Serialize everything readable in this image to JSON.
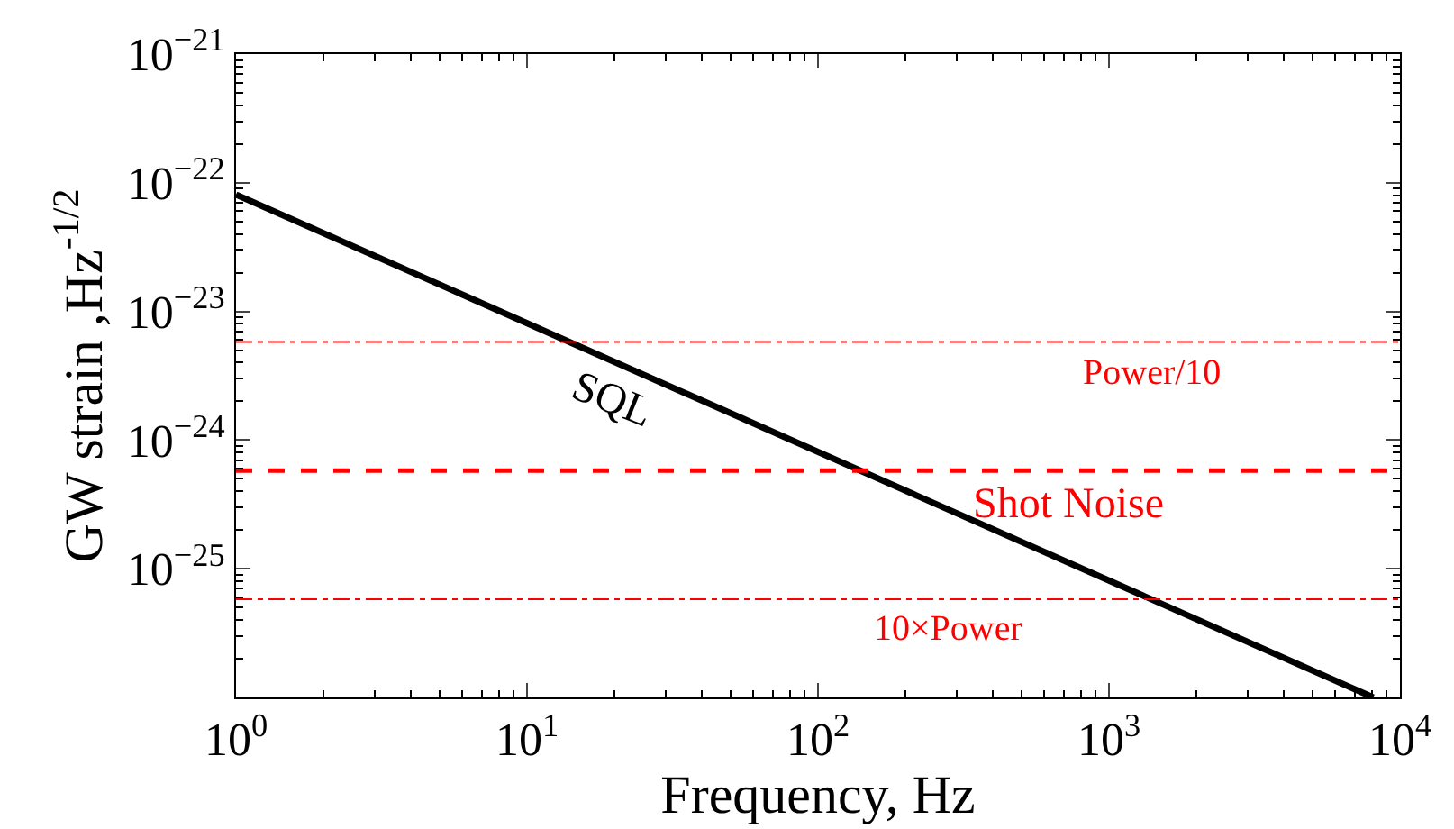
{
  "chart_data": {
    "type": "line",
    "xlabel": "Frequency, Hz",
    "ylabel": "GW strain ,Hz$^{-1/2}$",
    "log": "xy",
    "legend": false,
    "marker": "none",
    "series": [
      {
        "name": "SQL",
        "color": "#000000",
        "x": [
          1,
          8100
        ],
        "values": [
          8.1e-23,
          1e-26
        ]
      }
    ],
    "xlim": [
      1,
      10000
    ],
    "xticks": [
      {
        "value": 1,
        "label": "10$^{0}$"
      },
      {
        "value": 10,
        "label": "10$^{1}$"
      },
      {
        "value": 100,
        "label": "10$^{2}$"
      },
      {
        "value": 1000,
        "label": "10$^{3}$"
      },
      {
        "value": 10000,
        "label": "10$^{4}$"
      }
    ],
    "ylim": [
      1e-26,
      1e-21
    ],
    "yticks": [
      {
        "value": 1e-26,
        "label": null
      },
      {
        "value": 1e-25,
        "label": "10$^{−25}$"
      },
      {
        "value": 1e-24,
        "label": "10$^{−24}$"
      },
      {
        "value": 1e-23,
        "label": "10$^{−23}$"
      },
      {
        "value": 1e-22,
        "label": "10$^{−22}$"
      },
      {
        "value": 1e-21,
        "label": "10$^{−21}$"
      }
    ],
    "ref_lines": [
      {
        "axis": "y",
        "value": 5.8e-24,
        "label": "Power/10",
        "color": "#ff0000",
        "line_style": "dashdot"
      },
      {
        "axis": "y",
        "value": 5.8e-25,
        "label": "Shot Noise",
        "color": "#ff0000",
        "line_style": "dashed"
      },
      {
        "axis": "y",
        "value": 5.8e-26,
        "label": "10×Power",
        "color": "#ff0000",
        "line_style": "dashdot"
      }
    ]
  }
}
